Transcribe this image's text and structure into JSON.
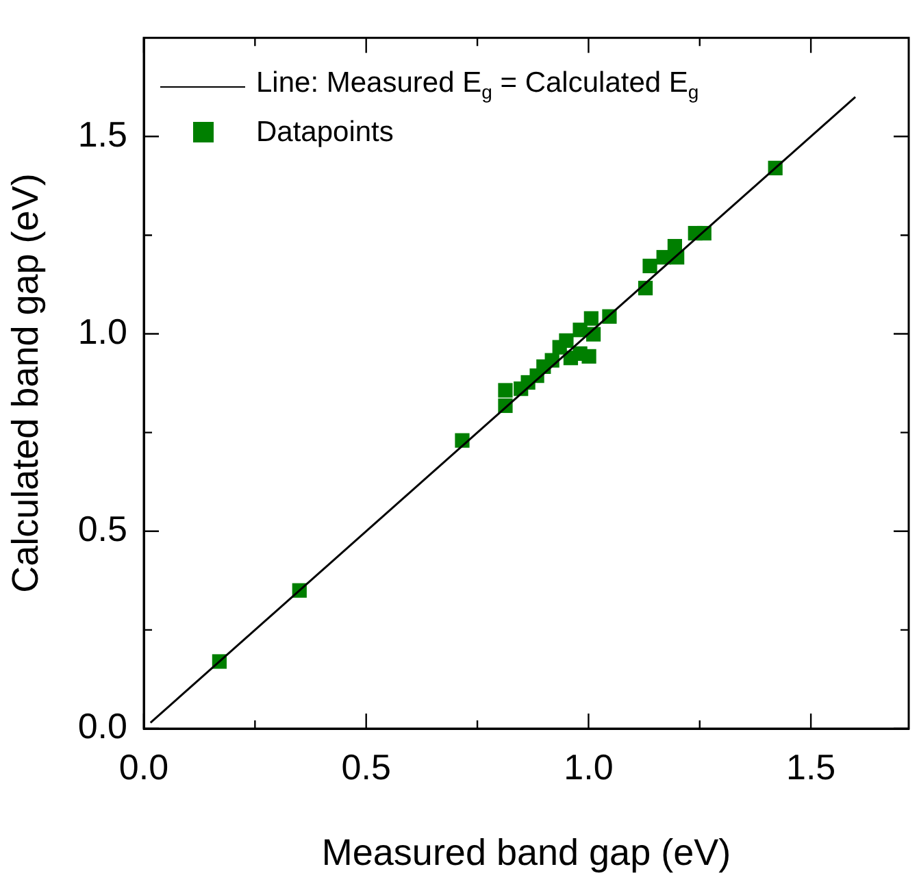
{
  "chart_data": {
    "type": "scatter",
    "xlabel": "Measured band gap (eV)",
    "ylabel": "Calculated band gap (eV)",
    "xlim": [
      0,
      1.72
    ],
    "ylim": [
      0,
      1.75
    ],
    "xticks": [
      {
        "value": 0,
        "label": "0.0"
      },
      {
        "value": 0.25,
        "label": null
      },
      {
        "value": 0.5,
        "label": "0.5"
      },
      {
        "value": 0.75,
        "label": null
      },
      {
        "value": 1.0,
        "label": "1.0"
      },
      {
        "value": 1.25,
        "label": null
      },
      {
        "value": 1.5,
        "label": "1.5"
      }
    ],
    "yticks": [
      {
        "value": 0,
        "label": "0.0"
      },
      {
        "value": 0.25,
        "label": null
      },
      {
        "value": 0.5,
        "label": "0.5"
      },
      {
        "value": 0.75,
        "label": null
      },
      {
        "value": 1.0,
        "label": "1.0"
      },
      {
        "value": 1.25,
        "label": null
      },
      {
        "value": 1.5,
        "label": "1.5"
      }
    ],
    "grid": false,
    "legend": "top left",
    "series": [
      {
        "name": "Line: Measured E$_{g}$ = Calculated E$_{g}$",
        "type": "line",
        "color": "#000000",
        "marker": "none",
        "line_style": "solid",
        "x": [
          0.015,
          1.6
        ],
        "values": [
          0.015,
          1.6
        ]
      },
      {
        "name": "Datapoints",
        "type": "scatter",
        "color": "#007f00",
        "marker": "square",
        "x": [
          0.17,
          0.35,
          0.716,
          0.813,
          0.813,
          0.848,
          0.864,
          0.884,
          0.899,
          0.918,
          0.935,
          0.95,
          0.96,
          0.981,
          0.981,
          1.001,
          1.011,
          1.006,
          1.047,
          1.128,
          1.138,
          1.169,
          1.194,
          1.199,
          1.24,
          1.26,
          1.42
        ],
        "values": [
          0.17,
          0.35,
          0.73,
          0.857,
          0.818,
          0.861,
          0.877,
          0.894,
          0.917,
          0.933,
          0.966,
          0.983,
          0.939,
          0.95,
          1.01,
          0.943,
          0.999,
          1.039,
          1.044,
          1.116,
          1.172,
          1.194,
          1.222,
          1.194,
          1.255,
          1.255,
          1.42
        ]
      }
    ]
  }
}
